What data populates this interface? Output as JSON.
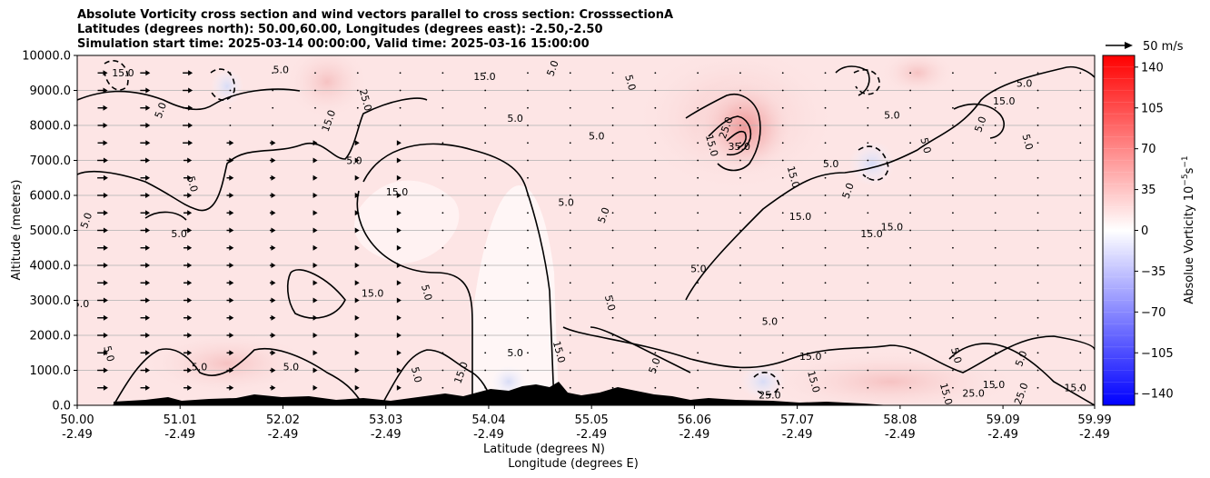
{
  "chart_data": {
    "type": "heatmap",
    "title_lines": [
      "Absolute Vorticity cross section and wind vectors parallel to cross section: CrosssectionA",
      "Latitudes (degrees north): 50.00,60.00, Longitudes (degrees east): -2.50,-2.50",
      "Simulation start time: 2025-03-14 00:00:00, Valid time: 2025-03-16 15:00:00"
    ],
    "xlabel": "Latitude (degrees N)",
    "xlabel2": "Longitude (degrees E)",
    "ylabel": "Altitude (meters)",
    "xlim": [
      50.0,
      59.99
    ],
    "ylim": [
      0,
      10000
    ],
    "x_ticks": [
      {
        "lat": "50.00",
        "lon": "-2.49",
        "value": 50.0
      },
      {
        "lat": "51.01",
        "lon": "-2.49",
        "value": 51.01
      },
      {
        "lat": "52.02",
        "lon": "-2.49",
        "value": 52.02
      },
      {
        "lat": "53.03",
        "lon": "-2.49",
        "value": 53.03
      },
      {
        "lat": "54.04",
        "lon": "-2.49",
        "value": 54.04
      },
      {
        "lat": "55.05",
        "lon": "-2.49",
        "value": 55.05
      },
      {
        "lat": "56.06",
        "lon": "-2.49",
        "value": 56.06
      },
      {
        "lat": "57.07",
        "lon": "-2.49",
        "value": 57.07
      },
      {
        "lat": "58.08",
        "lon": "-2.49",
        "value": 58.08
      },
      {
        "lat": "59.09",
        "lon": "-2.49",
        "value": 59.09
      },
      {
        "lat": "59.99",
        "lon": "-2.49",
        "value": 59.99
      }
    ],
    "y_ticks": [
      {
        "label": "0.0",
        "value": 0
      },
      {
        "label": "1000.0",
        "value": 1000
      },
      {
        "label": "2000.0",
        "value": 2000
      },
      {
        "label": "3000.0",
        "value": 3000
      },
      {
        "label": "4000.0",
        "value": 4000
      },
      {
        "label": "5000.0",
        "value": 5000
      },
      {
        "label": "6000.0",
        "value": 6000
      },
      {
        "label": "7000.0",
        "value": 7000
      },
      {
        "label": "8000.0",
        "value": 8000
      },
      {
        "label": "9000.0",
        "value": 9000
      },
      {
        "label": "10000.0",
        "value": 10000
      }
    ],
    "grid": "horizontal",
    "colorbar": {
      "label": "Absolue Vorticity 10",
      "label_exponent": "−5",
      "label_unit": "s",
      "label_unit_exponent": "−1",
      "range": [
        -150,
        150
      ],
      "ticks": [
        "140",
        "105",
        "70",
        "35",
        "0",
        "−35",
        "−70",
        "−105",
        "−140"
      ],
      "tick_values": [
        140,
        105,
        70,
        35,
        0,
        -35,
        -70,
        -105,
        -140
      ],
      "colormap": "bwr",
      "color_low": "#0000ff",
      "color_mid": "#ffffff",
      "color_high": "#ff0000"
    },
    "quiver_key": {
      "label": "50 m/s",
      "speed": 50
    },
    "contour_levels": [
      "5.0",
      "15.0",
      "25.0",
      "35.0"
    ],
    "contour_labels": [
      {
        "text": "5.0",
        "x": 50.12,
        "y": 5250
      },
      {
        "text": "15.0",
        "x": 53.14,
        "y": 6000
      },
      {
        "text": "5.0",
        "x": 50.04,
        "y": 2800
      },
      {
        "text": "5.0",
        "x": 50.28,
        "y": 1450
      },
      {
        "text": "15.0",
        "x": 50.45,
        "y": 9400
      },
      {
        "text": "5.0",
        "x": 50.85,
        "y": 8400
      },
      {
        "text": "5.0",
        "x": 51.1,
        "y": 6300
      },
      {
        "text": "5.0",
        "x": 51.0,
        "y": 4800
      },
      {
        "text": "5.0",
        "x": 52.0,
        "y": 9500
      },
      {
        "text": "25.0",
        "x": 52.8,
        "y": 8700
      },
      {
        "text": "15.0",
        "x": 52.5,
        "y": 8100
      },
      {
        "text": "5.0",
        "x": 52.72,
        "y": 6900
      },
      {
        "text": "5.0",
        "x": 53.4,
        "y": 3200
      },
      {
        "text": "15.0",
        "x": 52.9,
        "y": 3100
      },
      {
        "text": "15.0",
        "x": 54.0,
        "y": 9300
      },
      {
        "text": "5.0",
        "x": 54.7,
        "y": 9600
      },
      {
        "text": "5.0",
        "x": 54.3,
        "y": 8100
      },
      {
        "text": "5.0",
        "x": 55.1,
        "y": 7600
      },
      {
        "text": "5.0",
        "x": 55.4,
        "y": 9200
      },
      {
        "text": "5.0",
        "x": 54.8,
        "y": 5700
      },
      {
        "text": "5.0",
        "x": 55.2,
        "y": 5400
      },
      {
        "text": "5.0",
        "x": 55.2,
        "y": 2900
      },
      {
        "text": "5.0",
        "x": 56.1,
        "y": 3800
      },
      {
        "text": "5.0",
        "x": 56.8,
        "y": 2300
      },
      {
        "text": "15.0",
        "x": 56.2,
        "y": 7400
      },
      {
        "text": "25.0",
        "x": 56.4,
        "y": 7900
      },
      {
        "text": "35.0",
        "x": 56.5,
        "y": 7300
      },
      {
        "text": "15.0",
        "x": 57.0,
        "y": 6500
      },
      {
        "text": "15.0",
        "x": 57.1,
        "y": 5300
      },
      {
        "text": "5.0",
        "x": 57.4,
        "y": 6800
      },
      {
        "text": "5.0",
        "x": 57.6,
        "y": 6100
      },
      {
        "text": "15.0",
        "x": 58.0,
        "y": 5000
      },
      {
        "text": "15.0",
        "x": 57.8,
        "y": 4800
      },
      {
        "text": "5.0",
        "x": 58.3,
        "y": 7400
      },
      {
        "text": "5.0",
        "x": 58.0,
        "y": 8200
      },
      {
        "text": "5.0",
        "x": 58.9,
        "y": 8000
      },
      {
        "text": "5.0",
        "x": 59.3,
        "y": 7500
      },
      {
        "text": "5.0",
        "x": 59.3,
        "y": 9100
      },
      {
        "text": "15.0",
        "x": 59.1,
        "y": 8600
      },
      {
        "text": "5.0",
        "x": 58.6,
        "y": 1400
      },
      {
        "text": "5.0",
        "x": 59.3,
        "y": 1300
      },
      {
        "text": "15.0",
        "x": 57.2,
        "y": 1300
      },
      {
        "text": "15.0",
        "x": 57.2,
        "y": 650
      },
      {
        "text": "15.0",
        "x": 59.0,
        "y": 500
      },
      {
        "text": "25.0",
        "x": 58.8,
        "y": 250
      },
      {
        "text": "25.0",
        "x": 59.3,
        "y": 300
      },
      {
        "text": "15.0",
        "x": 59.8,
        "y": 400
      },
      {
        "text": "25.0",
        "x": 56.8,
        "y": 200
      },
      {
        "text": "15.0",
        "x": 58.5,
        "y": 300
      },
      {
        "text": "5.0",
        "x": 54.3,
        "y": 1400
      },
      {
        "text": "15.0",
        "x": 53.8,
        "y": 900
      },
      {
        "text": "15.0",
        "x": 54.7,
        "y": 1500
      },
      {
        "text": "5.0",
        "x": 51.2,
        "y": 1000
      },
      {
        "text": "5.0",
        "x": 52.1,
        "y": 1000
      },
      {
        "text": "5.0",
        "x": 53.3,
        "y": 850
      },
      {
        "text": "5.0",
        "x": 55.7,
        "y": 1100
      }
    ]
  }
}
